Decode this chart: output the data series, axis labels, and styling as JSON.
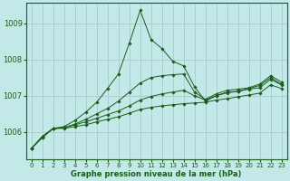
{
  "xlabel": "Graphe pression niveau de la mer (hPa)",
  "bg_color": "#c2e8e8",
  "grid_color": "#b0c8c8",
  "line_color": "#1a5c1a",
  "ylim": [
    1005.25,
    1009.55
  ],
  "xlim": [
    -0.5,
    23.5
  ],
  "yticks": [
    1006,
    1007,
    1008,
    1009
  ],
  "xticks": [
    0,
    1,
    2,
    3,
    4,
    5,
    6,
    7,
    8,
    9,
    10,
    11,
    12,
    13,
    14,
    15,
    16,
    17,
    18,
    19,
    20,
    21,
    22,
    23
  ],
  "series": [
    [
      1005.55,
      1005.85,
      1006.1,
      1006.1,
      1006.15,
      1006.2,
      1006.28,
      1006.35,
      1006.42,
      1006.52,
      1006.62,
      1006.68,
      1006.72,
      1006.75,
      1006.78,
      1006.8,
      1006.82,
      1006.88,
      1006.92,
      1006.97,
      1007.02,
      1007.07,
      1007.3,
      1007.2
    ],
    [
      1005.55,
      1005.85,
      1006.1,
      1006.12,
      1006.2,
      1006.28,
      1006.38,
      1006.48,
      1006.58,
      1006.72,
      1006.88,
      1006.98,
      1007.05,
      1007.1,
      1007.15,
      1007.0,
      1006.88,
      1007.0,
      1007.08,
      1007.12,
      1007.18,
      1007.22,
      1007.45,
      1007.3
    ],
    [
      1005.55,
      1005.88,
      1006.1,
      1006.15,
      1006.32,
      1006.55,
      1006.82,
      1007.2,
      1007.6,
      1008.45,
      1009.35,
      1008.55,
      1008.3,
      1007.95,
      1007.82,
      1007.25,
      1006.85,
      1007.0,
      1007.1,
      1007.12,
      1007.2,
      1007.28,
      1007.5,
      1007.32
    ],
    [
      1005.55,
      1005.88,
      1006.1,
      1006.12,
      1006.22,
      1006.35,
      1006.5,
      1006.65,
      1006.85,
      1007.1,
      1007.35,
      1007.5,
      1007.55,
      1007.58,
      1007.6,
      1007.1,
      1006.9,
      1007.05,
      1007.15,
      1007.18,
      1007.22,
      1007.32,
      1007.55,
      1007.38
    ]
  ]
}
